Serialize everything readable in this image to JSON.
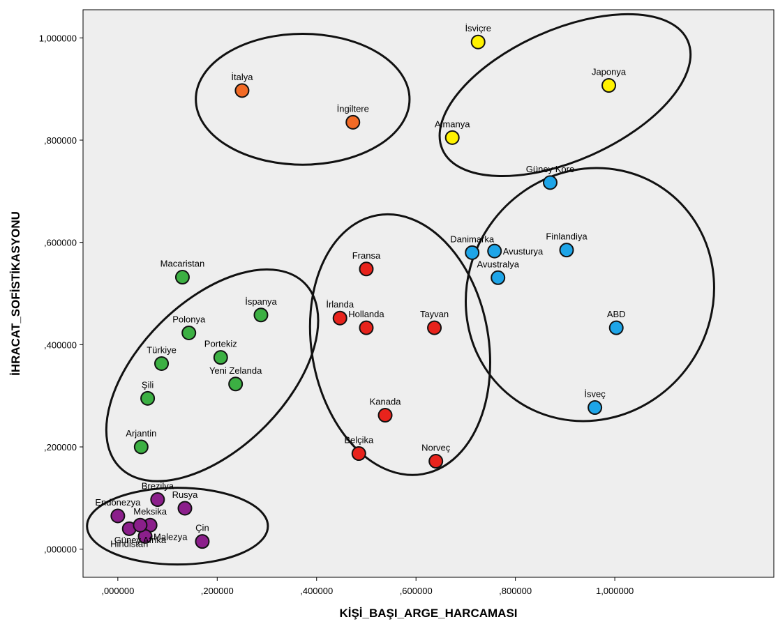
{
  "chart_data": {
    "type": "scatter",
    "xlabel": "KİŞİ_BAŞI_ARGE_HARCAMASI",
    "ylabel": "İHRACAT_SOFİSTİKASYONU",
    "xlim": [
      -0.07,
      1.32
    ],
    "ylim": [
      -0.055,
      1.055
    ],
    "x_ticks": [
      0.0,
      0.2,
      0.4,
      0.6,
      0.8,
      1.0
    ],
    "x_tick_labels": [
      ",000000",
      ",200000",
      ",400000",
      ",600000",
      ",800000",
      "1,000000"
    ],
    "y_ticks": [
      0.0,
      0.2,
      0.4,
      0.6,
      0.8,
      1.0
    ],
    "y_tick_labels": [
      ",000000",
      ",200000",
      ",400000",
      ",600000",
      ",800000",
      "1,000000"
    ],
    "grid": false,
    "background": "#eeeeee",
    "cluster_colors": {
      "purple": "#8b1f8b",
      "green": "#3cb043",
      "red": "#e8231c",
      "blue": "#1ea5e8",
      "orange": "#f26a25",
      "yellow": "#fff200"
    },
    "points": [
      {
        "label": "İsviçre",
        "x": 0.725,
        "y": 0.992,
        "cluster": "yellow",
        "lpos": "tc"
      },
      {
        "label": "Japonya",
        "x": 0.988,
        "y": 0.907,
        "cluster": "yellow",
        "lpos": "tc"
      },
      {
        "label": "Almanya",
        "x": 0.673,
        "y": 0.805,
        "cluster": "yellow",
        "lpos": "tc"
      },
      {
        "label": "İtalya",
        "x": 0.25,
        "y": 0.897,
        "cluster": "orange",
        "lpos": "tc"
      },
      {
        "label": "İngiltere",
        "x": 0.473,
        "y": 0.835,
        "cluster": "orange",
        "lpos": "tc"
      },
      {
        "label": "Güney Kore",
        "x": 0.87,
        "y": 0.717,
        "cluster": "blue",
        "lpos": "tc"
      },
      {
        "label": "Danimarka",
        "x": 0.713,
        "y": 0.58,
        "cluster": "blue",
        "lpos": "tc"
      },
      {
        "label": "Avusturya",
        "x": 0.758,
        "y": 0.583,
        "cluster": "blue",
        "lpos": "r"
      },
      {
        "label": "Finlandiya",
        "x": 0.903,
        "y": 0.585,
        "cluster": "blue",
        "lpos": "tc"
      },
      {
        "label": "Avustralya",
        "x": 0.765,
        "y": 0.531,
        "cluster": "blue",
        "lpos": "tc"
      },
      {
        "label": "ABD",
        "x": 1.003,
        "y": 0.433,
        "cluster": "blue",
        "lpos": "tc"
      },
      {
        "label": "İsveç",
        "x": 0.96,
        "y": 0.277,
        "cluster": "blue",
        "lpos": "tc"
      },
      {
        "label": "Fransa",
        "x": 0.5,
        "y": 0.548,
        "cluster": "red",
        "lpos": "tc"
      },
      {
        "label": "İrlanda",
        "x": 0.447,
        "y": 0.452,
        "cluster": "red",
        "lpos": "tc"
      },
      {
        "label": "Hollanda",
        "x": 0.5,
        "y": 0.433,
        "cluster": "red",
        "lpos": "tc"
      },
      {
        "label": "Tayvan",
        "x": 0.637,
        "y": 0.433,
        "cluster": "red",
        "lpos": "tc"
      },
      {
        "label": "Kanada",
        "x": 0.538,
        "y": 0.262,
        "cluster": "red",
        "lpos": "tc"
      },
      {
        "label": "Belçika",
        "x": 0.485,
        "y": 0.187,
        "cluster": "red",
        "lpos": "tc"
      },
      {
        "label": "Norveç",
        "x": 0.64,
        "y": 0.172,
        "cluster": "red",
        "lpos": "tc"
      },
      {
        "label": "Macaristan",
        "x": 0.13,
        "y": 0.532,
        "cluster": "green",
        "lpos": "tc"
      },
      {
        "label": "İspanya",
        "x": 0.288,
        "y": 0.458,
        "cluster": "green",
        "lpos": "tc"
      },
      {
        "label": "Polonya",
        "x": 0.143,
        "y": 0.423,
        "cluster": "green",
        "lpos": "tc"
      },
      {
        "label": "Türkiye",
        "x": 0.088,
        "y": 0.363,
        "cluster": "green",
        "lpos": "tc"
      },
      {
        "label": "Portekiz",
        "x": 0.207,
        "y": 0.375,
        "cluster": "green",
        "lpos": "tc"
      },
      {
        "label": "Yeni Zelanda",
        "x": 0.237,
        "y": 0.323,
        "cluster": "green",
        "lpos": "tc"
      },
      {
        "label": "Şili",
        "x": 0.06,
        "y": 0.295,
        "cluster": "green",
        "lpos": "tc"
      },
      {
        "label": "Arjantin",
        "x": 0.047,
        "y": 0.2,
        "cluster": "green",
        "lpos": "tc"
      },
      {
        "label": "Brezilya",
        "x": 0.08,
        "y": 0.097,
        "cluster": "purple",
        "lpos": "tc"
      },
      {
        "label": "Rusya",
        "x": 0.135,
        "y": 0.08,
        "cluster": "purple",
        "lpos": "tc"
      },
      {
        "label": "Endonezya",
        "x": 0.0,
        "y": 0.065,
        "cluster": "purple",
        "lpos": "tc"
      },
      {
        "label": "Meksika",
        "x": 0.065,
        "y": 0.047,
        "cluster": "purple",
        "lpos": "tc"
      },
      {
        "label": "Hindistan",
        "x": 0.023,
        "y": 0.04,
        "cluster": "purple",
        "lpos": "bc"
      },
      {
        "label": "Malezya",
        "x": 0.055,
        "y": 0.025,
        "cluster": "purple",
        "lpos": "r"
      },
      {
        "label": "Güney Afrika",
        "x": 0.045,
        "y": 0.047,
        "cluster": "purple",
        "lpos": "bc"
      },
      {
        "label": "Çin",
        "x": 0.17,
        "y": 0.015,
        "cluster": "purple",
        "lpos": "tc"
      }
    ],
    "clusters": [
      {
        "name": "orange",
        "cx": 0.372,
        "cy": 0.88,
        "rx": 0.215,
        "ry": 0.128,
        "angle": 0
      },
      {
        "name": "yellow",
        "cx": 0.9,
        "cy": 0.888,
        "rx": 0.27,
        "ry": 0.128,
        "angle": -24
      },
      {
        "name": "blue",
        "cx": 0.95,
        "cy": 0.498,
        "rx": 0.245,
        "ry": 0.252,
        "angle": 35
      },
      {
        "name": "red",
        "cx": 0.568,
        "cy": 0.4,
        "rx": 0.178,
        "ry": 0.257,
        "angle": -10
      },
      {
        "name": "green",
        "cx": 0.19,
        "cy": 0.34,
        "rx": 0.148,
        "ry": 0.255,
        "angle": 45
      },
      {
        "name": "purple",
        "cx": 0.12,
        "cy": 0.045,
        "rx": 0.182,
        "ry": 0.075,
        "angle": 0
      }
    ]
  }
}
